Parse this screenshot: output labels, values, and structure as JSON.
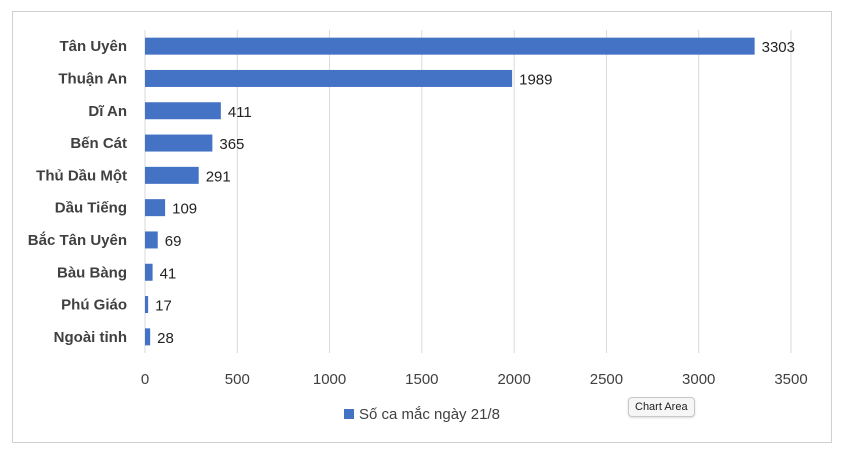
{
  "chart_data": {
    "type": "bar",
    "orientation": "horizontal",
    "categories": [
      "Tân Uyên",
      "Thuận An",
      "Dĩ An",
      "Bến Cát",
      "Thủ Dầu Một",
      "Dầu Tiếng",
      "Bắc Tân Uyên",
      "Bàu Bàng",
      "Phú Giáo",
      "Ngoài tỉnh"
    ],
    "series": [
      {
        "name": "Số ca mắc ngày 21/8",
        "values": [
          3303,
          1989,
          411,
          365,
          291,
          109,
          69,
          41,
          17,
          28
        ]
      }
    ],
    "xlim": [
      0,
      3500
    ],
    "xticks": [
      0,
      500,
      1000,
      1500,
      2000,
      2500,
      3000,
      3500
    ],
    "grid": true,
    "data_labels": true,
    "legend_position": "bottom",
    "bar_color": "#4472c4"
  },
  "tooltip": {
    "text": "Chart Area"
  }
}
